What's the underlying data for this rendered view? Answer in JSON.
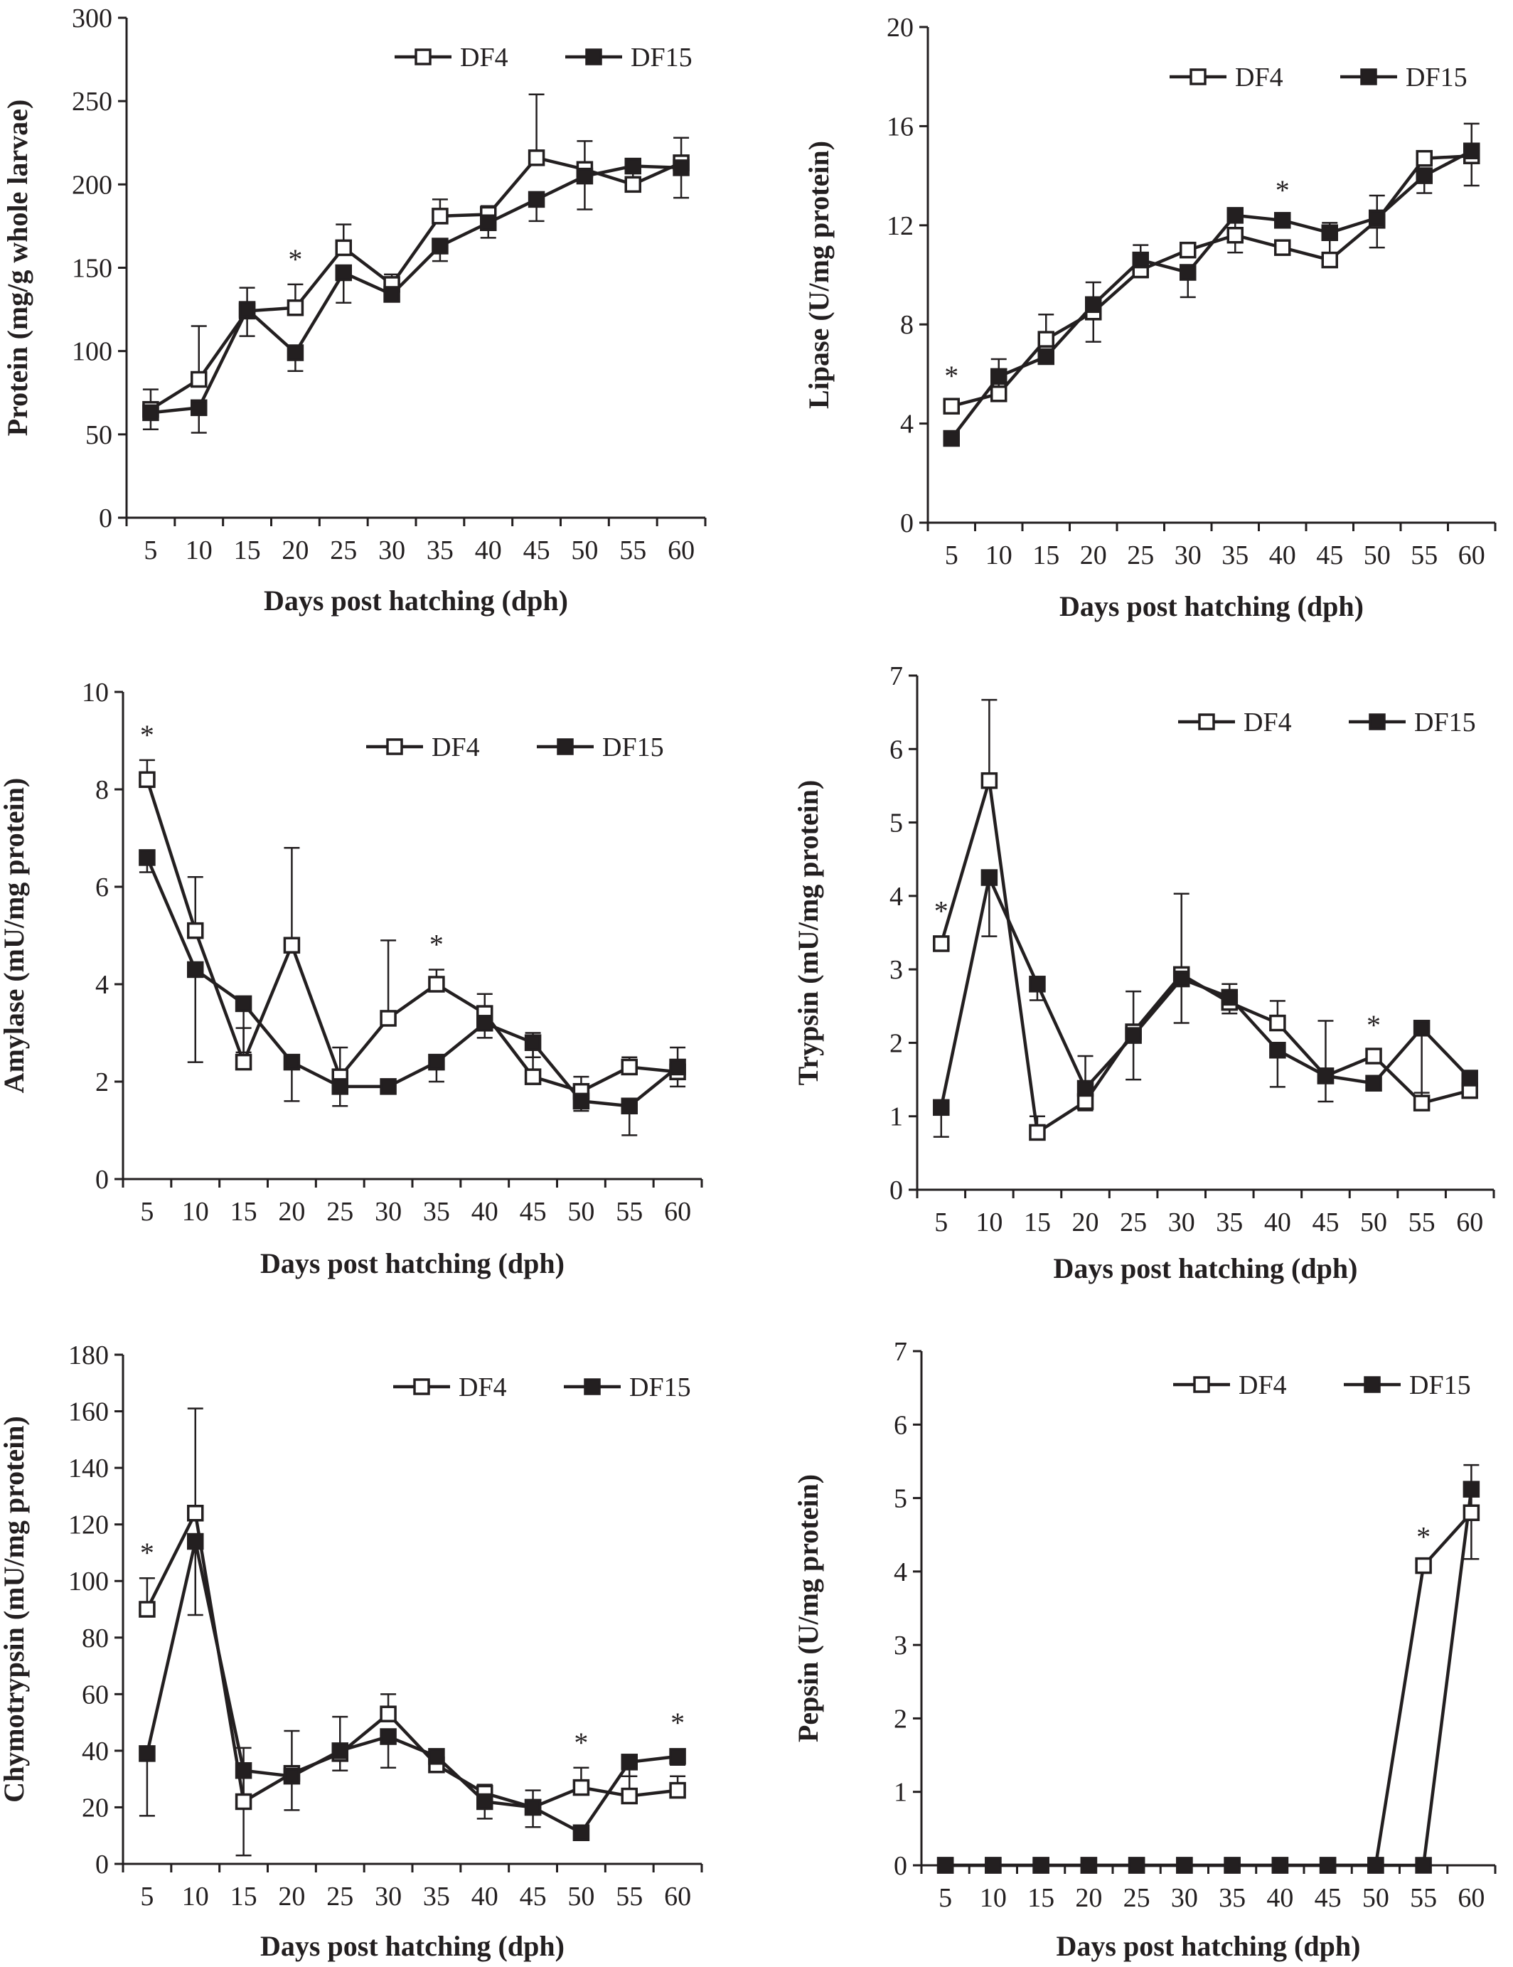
{
  "chart_data": [
    {
      "id": "protein",
      "type": "line",
      "title": "",
      "xlabel": "Days post hatching (dph)",
      "ylabel": "Protein (mg/g whole larvae)",
      "x": [
        5,
        10,
        15,
        20,
        25,
        30,
        35,
        40,
        45,
        50,
        55,
        60
      ],
      "ylim": [
        0,
        300
      ],
      "yticks": [
        0,
        50,
        100,
        150,
        200,
        250,
        300
      ],
      "legend": "top-right",
      "series": [
        {
          "name": "DF4",
          "marker": "open-square",
          "values": [
            65,
            83,
            124,
            126,
            162,
            140,
            181,
            182,
            216,
            209,
            200,
            213
          ],
          "errors": [
            12,
            32,
            14,
            14,
            14,
            6,
            10,
            5,
            38,
            17,
            7,
            15
          ]
        },
        {
          "name": "DF15",
          "marker": "filled-square",
          "values": [
            63,
            66,
            125,
            99,
            147,
            134,
            163,
            177,
            191,
            205,
            211,
            210
          ],
          "errors": [
            10,
            15,
            16,
            11,
            18,
            4,
            9,
            9,
            13,
            20,
            11,
            18
          ]
        }
      ],
      "annotations": [
        {
          "x": 20,
          "text": "*"
        }
      ]
    },
    {
      "id": "lipase",
      "type": "line",
      "title": "",
      "xlabel": "Days post hatching (dph)",
      "ylabel": "Lipase (U/mg protein)",
      "x": [
        5,
        10,
        15,
        20,
        25,
        30,
        35,
        40,
        45,
        50,
        55,
        60
      ],
      "ylim": [
        0,
        20
      ],
      "yticks": [
        0,
        4,
        8,
        12,
        16,
        20
      ],
      "legend": "top-right",
      "series": [
        {
          "name": "DF4",
          "marker": "open-square",
          "values": [
            4.7,
            5.2,
            7.4,
            8.5,
            10.2,
            11.0,
            11.6,
            11.1,
            10.6,
            12.2,
            14.7,
            14.8
          ],
          "errors": [
            0.2,
            1.4,
            1.0,
            1.2,
            1.0,
            0.2,
            0.7,
            0.2,
            1.5,
            1.0,
            0.2,
            1.3
          ]
        },
        {
          "name": "DF15",
          "marker": "filled-square",
          "values": [
            3.4,
            5.9,
            6.7,
            8.8,
            10.6,
            10.1,
            12.4,
            12.2,
            11.7,
            12.3,
            14.0,
            15.0
          ],
          "errors": [
            0.1,
            0.7,
            0.2,
            1.5,
            0.7,
            1.0,
            1.5,
            0.2,
            0.9,
            1.2,
            0.7,
            1.4
          ]
        }
      ],
      "annotations": [
        {
          "x": 5,
          "text": "*"
        },
        {
          "x": 40,
          "text": "*"
        }
      ]
    },
    {
      "id": "amylase",
      "type": "line",
      "title": "",
      "xlabel": "Days post hatching (dph)",
      "ylabel": "Amylase (mU/mg protein)",
      "x": [
        5,
        10,
        15,
        20,
        25,
        30,
        35,
        40,
        45,
        50,
        55,
        60
      ],
      "ylim": [
        0,
        10
      ],
      "yticks": [
        0,
        2,
        4,
        6,
        8,
        10
      ],
      "legend": "top-right",
      "series": [
        {
          "name": "DF4",
          "marker": "open-square",
          "values": [
            8.2,
            5.1,
            2.4,
            4.8,
            2.1,
            3.3,
            4.0,
            3.4,
            2.1,
            1.8,
            2.3,
            2.2
          ],
          "errors": [
            0.4,
            1.1,
            0.7,
            2.0,
            0.6,
            1.6,
            0.3,
            0.4,
            0.9,
            0.3,
            0.2,
            0.5
          ]
        },
        {
          "name": "DF15",
          "marker": "filled-square",
          "values": [
            6.6,
            4.3,
            3.6,
            2.4,
            1.9,
            1.9,
            2.4,
            3.2,
            2.8,
            1.6,
            1.5,
            2.3
          ],
          "errors": [
            0.3,
            1.9,
            1.0,
            0.8,
            0.4,
            0.1,
            0.4,
            0.3,
            0.3,
            0.2,
            0.6,
            0.4
          ]
        }
      ],
      "annotations": [
        {
          "x": 5,
          "text": "*"
        },
        {
          "x": 35,
          "text": "*"
        }
      ]
    },
    {
      "id": "trypsin",
      "type": "line",
      "title": "",
      "xlabel": "Days post hatching (dph)",
      "ylabel": "Trypsin (mU/mg protein)",
      "x": [
        5,
        10,
        15,
        20,
        25,
        30,
        35,
        40,
        45,
        50,
        55,
        60
      ],
      "ylim": [
        0,
        7
      ],
      "yticks": [
        0,
        1,
        2,
        3,
        4,
        5,
        6,
        7
      ],
      "legend": "top-right",
      "series": [
        {
          "name": "DF4",
          "marker": "open-square",
          "values": [
            3.35,
            5.57,
            0.78,
            1.2,
            2.15,
            2.93,
            2.55,
            2.27,
            1.55,
            1.82,
            1.18,
            1.35
          ],
          "errors": [
            0.1,
            1.1,
            0.22,
            0.62,
            0.55,
            1.1,
            0.25,
            0.3,
            0.75,
            0.08,
            0.14,
            0.1
          ]
        },
        {
          "name": "DF15",
          "marker": "filled-square",
          "values": [
            1.12,
            4.25,
            2.8,
            1.38,
            2.1,
            2.87,
            2.62,
            1.9,
            1.55,
            1.45,
            2.2,
            1.52
          ],
          "errors": [
            0.4,
            0.8,
            0.22,
            0.3,
            0.6,
            0.6,
            0.22,
            0.5,
            0.35,
            0.06,
            0.95,
            0.27
          ]
        }
      ],
      "annotations": [
        {
          "x": 5,
          "text": "*"
        },
        {
          "x": 50,
          "text": "*"
        }
      ]
    },
    {
      "id": "chymotrypsin",
      "type": "line",
      "title": "",
      "xlabel": "Days post hatching (dph)",
      "ylabel": "Chymotrypsin (mU/mg protein)",
      "x": [
        5,
        10,
        15,
        20,
        25,
        30,
        35,
        40,
        45,
        50,
        55,
        60
      ],
      "ylim": [
        0,
        180
      ],
      "yticks": [
        0,
        20,
        40,
        60,
        80,
        100,
        120,
        140,
        160,
        180
      ],
      "legend": "top-right",
      "series": [
        {
          "name": "DF4",
          "marker": "open-square",
          "values": [
            90,
            124,
            22,
            32,
            39,
            53,
            35,
            25,
            20,
            27,
            24,
            26
          ],
          "errors": [
            11,
            37,
            19,
            15,
            13,
            7,
            4,
            3,
            6,
            7,
            7,
            5
          ]
        },
        {
          "name": "DF15",
          "marker": "filled-square",
          "values": [
            39,
            114,
            33,
            31,
            40,
            45,
            38,
            22,
            20,
            11,
            36,
            38
          ],
          "errors": [
            22,
            26,
            30,
            12,
            7,
            11,
            3,
            6,
            7,
            2,
            5,
            3
          ]
        }
      ],
      "annotations": [
        {
          "x": 5,
          "text": "*"
        },
        {
          "x": 50,
          "text": "*"
        },
        {
          "x": 60,
          "text": "*"
        }
      ]
    },
    {
      "id": "pepsin",
      "type": "line",
      "title": "",
      "xlabel": "Days post hatching (dph)",
      "ylabel": "Pepsin (U/mg protein)",
      "x": [
        5,
        10,
        15,
        20,
        25,
        30,
        35,
        40,
        45,
        50,
        55,
        60
      ],
      "ylim": [
        0,
        7
      ],
      "yticks": [
        0,
        1,
        2,
        3,
        4,
        5,
        6,
        7
      ],
      "legend": "top-right",
      "series": [
        {
          "name": "DF4",
          "marker": "open-square",
          "values": [
            0,
            0,
            0,
            0,
            0,
            0,
            0,
            0,
            0,
            0,
            4.08,
            4.8
          ],
          "errors": [
            0,
            0,
            0,
            0,
            0,
            0,
            0,
            0,
            0,
            0,
            0.05,
            0.65
          ]
        },
        {
          "name": "DF15",
          "marker": "filled-square",
          "values": [
            0,
            0,
            0,
            0,
            0,
            0,
            0,
            0,
            0,
            0,
            0,
            5.12
          ],
          "errors": [
            0,
            0,
            0,
            0,
            0,
            0,
            0,
            0,
            0,
            0,
            0,
            0.95
          ]
        }
      ],
      "annotations": [
        {
          "x": 55,
          "text": "*"
        }
      ]
    }
  ]
}
